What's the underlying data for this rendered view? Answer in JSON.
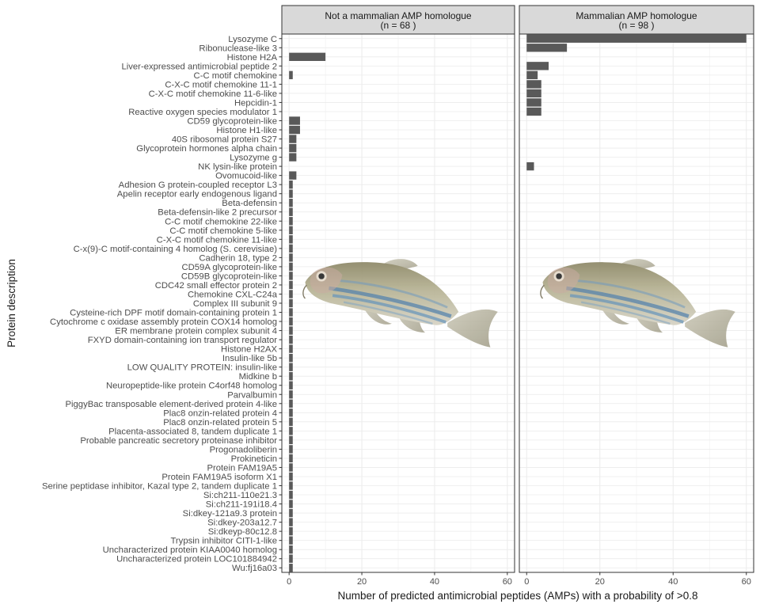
{
  "chart_data": {
    "type": "bar",
    "orientation": "horizontal",
    "xlabel": "Number of predicted antimicrobial peptides (AMPs) with a probability of >0.8",
    "ylabel": "Protein description",
    "xlim": [
      -2,
      62
    ],
    "xticks": [
      0,
      20,
      40,
      60
    ],
    "grid": true,
    "bar_color": "#595959",
    "panels": [
      {
        "line1": "Not a mammalian AMP homologue",
        "line2": "(n =  68 )",
        "name": "Not a mammalian AMP homologue"
      },
      {
        "line1": "Mammalian AMP homologue",
        "line2": "(n =  98 )",
        "name": "Mammalian AMP homologue"
      }
    ],
    "categories": [
      "Lysozyme C",
      "Ribonuclease-like 3",
      "Histone H2A",
      "Liver-expressed antimicrobial peptide 2",
      "C-C motif chemokine",
      "C-X-C motif chemokine 11-1",
      "C-X-C motif chemokine 11-6-like",
      "Hepcidin-1",
      "Reactive oxygen species modulator 1",
      "CD59 glycoprotein-like",
      "Histone H1-like",
      "40S ribosomal protein S27",
      "Glycoprotein hormones alpha chain",
      "Lysozyme g",
      "NK lysin-like protein",
      "Ovomucoid-like",
      "Adhesion G protein-coupled receptor L3",
      "Apelin receptor early endogenous ligand",
      "Beta-defensin",
      "Beta-defensin-like 2 precursor",
      "C-C motif chemokine 22-like",
      "C-C motif chemokine 5-like",
      "C-X-C motif chemokine 11-like",
      "C-x(9)-C motif-containing 4 homolog (S. cerevisiae)",
      "Cadherin 18, type 2",
      "CD59A glycoprotein-like",
      "CD59B glycoprotein-like",
      "CDC42 small effector protein 2",
      "Chemokine CXL-C24a",
      "Complex III subunit 9",
      "Cysteine-rich DPF motif domain-containing protein 1",
      "Cytochrome c oxidase assembly protein COX14 homolog",
      "ER membrane protein complex subunit 4",
      "FXYD domain-containing ion transport regulator",
      "Histone H2AX",
      "Insulin-like 5b",
      "LOW QUALITY PROTEIN: insulin-like",
      "Midkine b",
      "Neuropeptide-like protein C4orf48 homolog",
      "Parvalbumin",
      "PiggyBac transposable element-derived protein 4-like",
      "Plac8 onzin-related protein 4",
      "Plac8 onzin-related protein 5",
      "Placenta-associated 8, tandem duplicate 1",
      "Probable pancreatic secretory proteinase inhibitor",
      "Progonadoliberin",
      "Prokineticin",
      "Protein FAM19A5",
      "Protein FAM19A5 isoform X1",
      "Serine peptidase inhibitor, Kazal type 2, tandem duplicate 1",
      "Si:ch211-110e21.3",
      "Si:ch211-191i18.4",
      "Si:dkey-121a9.3 protein",
      "Si:dkey-203a12.7",
      "Si:dkeyp-80c12.8",
      "Trypsin inhibitor CITI-1-like",
      "Uncharacterized protein KIAA0040 homolog",
      "Uncharacterized protein LOC101884942",
      "Wu:fj16a03"
    ],
    "series": [
      {
        "values": [
          0,
          0,
          10,
          0,
          1,
          0,
          0,
          0,
          0,
          3,
          3,
          2,
          2,
          2,
          0,
          2,
          1,
          1,
          1,
          1,
          1,
          1,
          1,
          1,
          1,
          1,
          1,
          1,
          1,
          1,
          1,
          1,
          1,
          1,
          1,
          1,
          1,
          1,
          1,
          1,
          1,
          1,
          1,
          1,
          1,
          1,
          1,
          1,
          1,
          1,
          1,
          1,
          1,
          1,
          1,
          1,
          1,
          1,
          1
        ]
      },
      {
        "values": [
          60,
          11,
          0,
          6,
          3,
          4,
          4,
          4,
          4,
          0,
          0,
          0,
          0,
          0,
          2,
          0,
          0,
          0,
          0,
          0,
          0,
          0,
          0,
          0,
          0,
          0,
          0,
          0,
          0,
          0,
          0,
          0,
          0,
          0,
          0,
          0,
          0,
          0,
          0,
          0,
          0,
          0,
          0,
          0,
          0,
          0,
          0,
          0,
          0,
          0,
          0,
          0,
          0,
          0,
          0,
          0,
          0,
          0,
          0
        ]
      }
    ]
  },
  "decoration": {
    "icon": "zebrafish-illustration"
  }
}
